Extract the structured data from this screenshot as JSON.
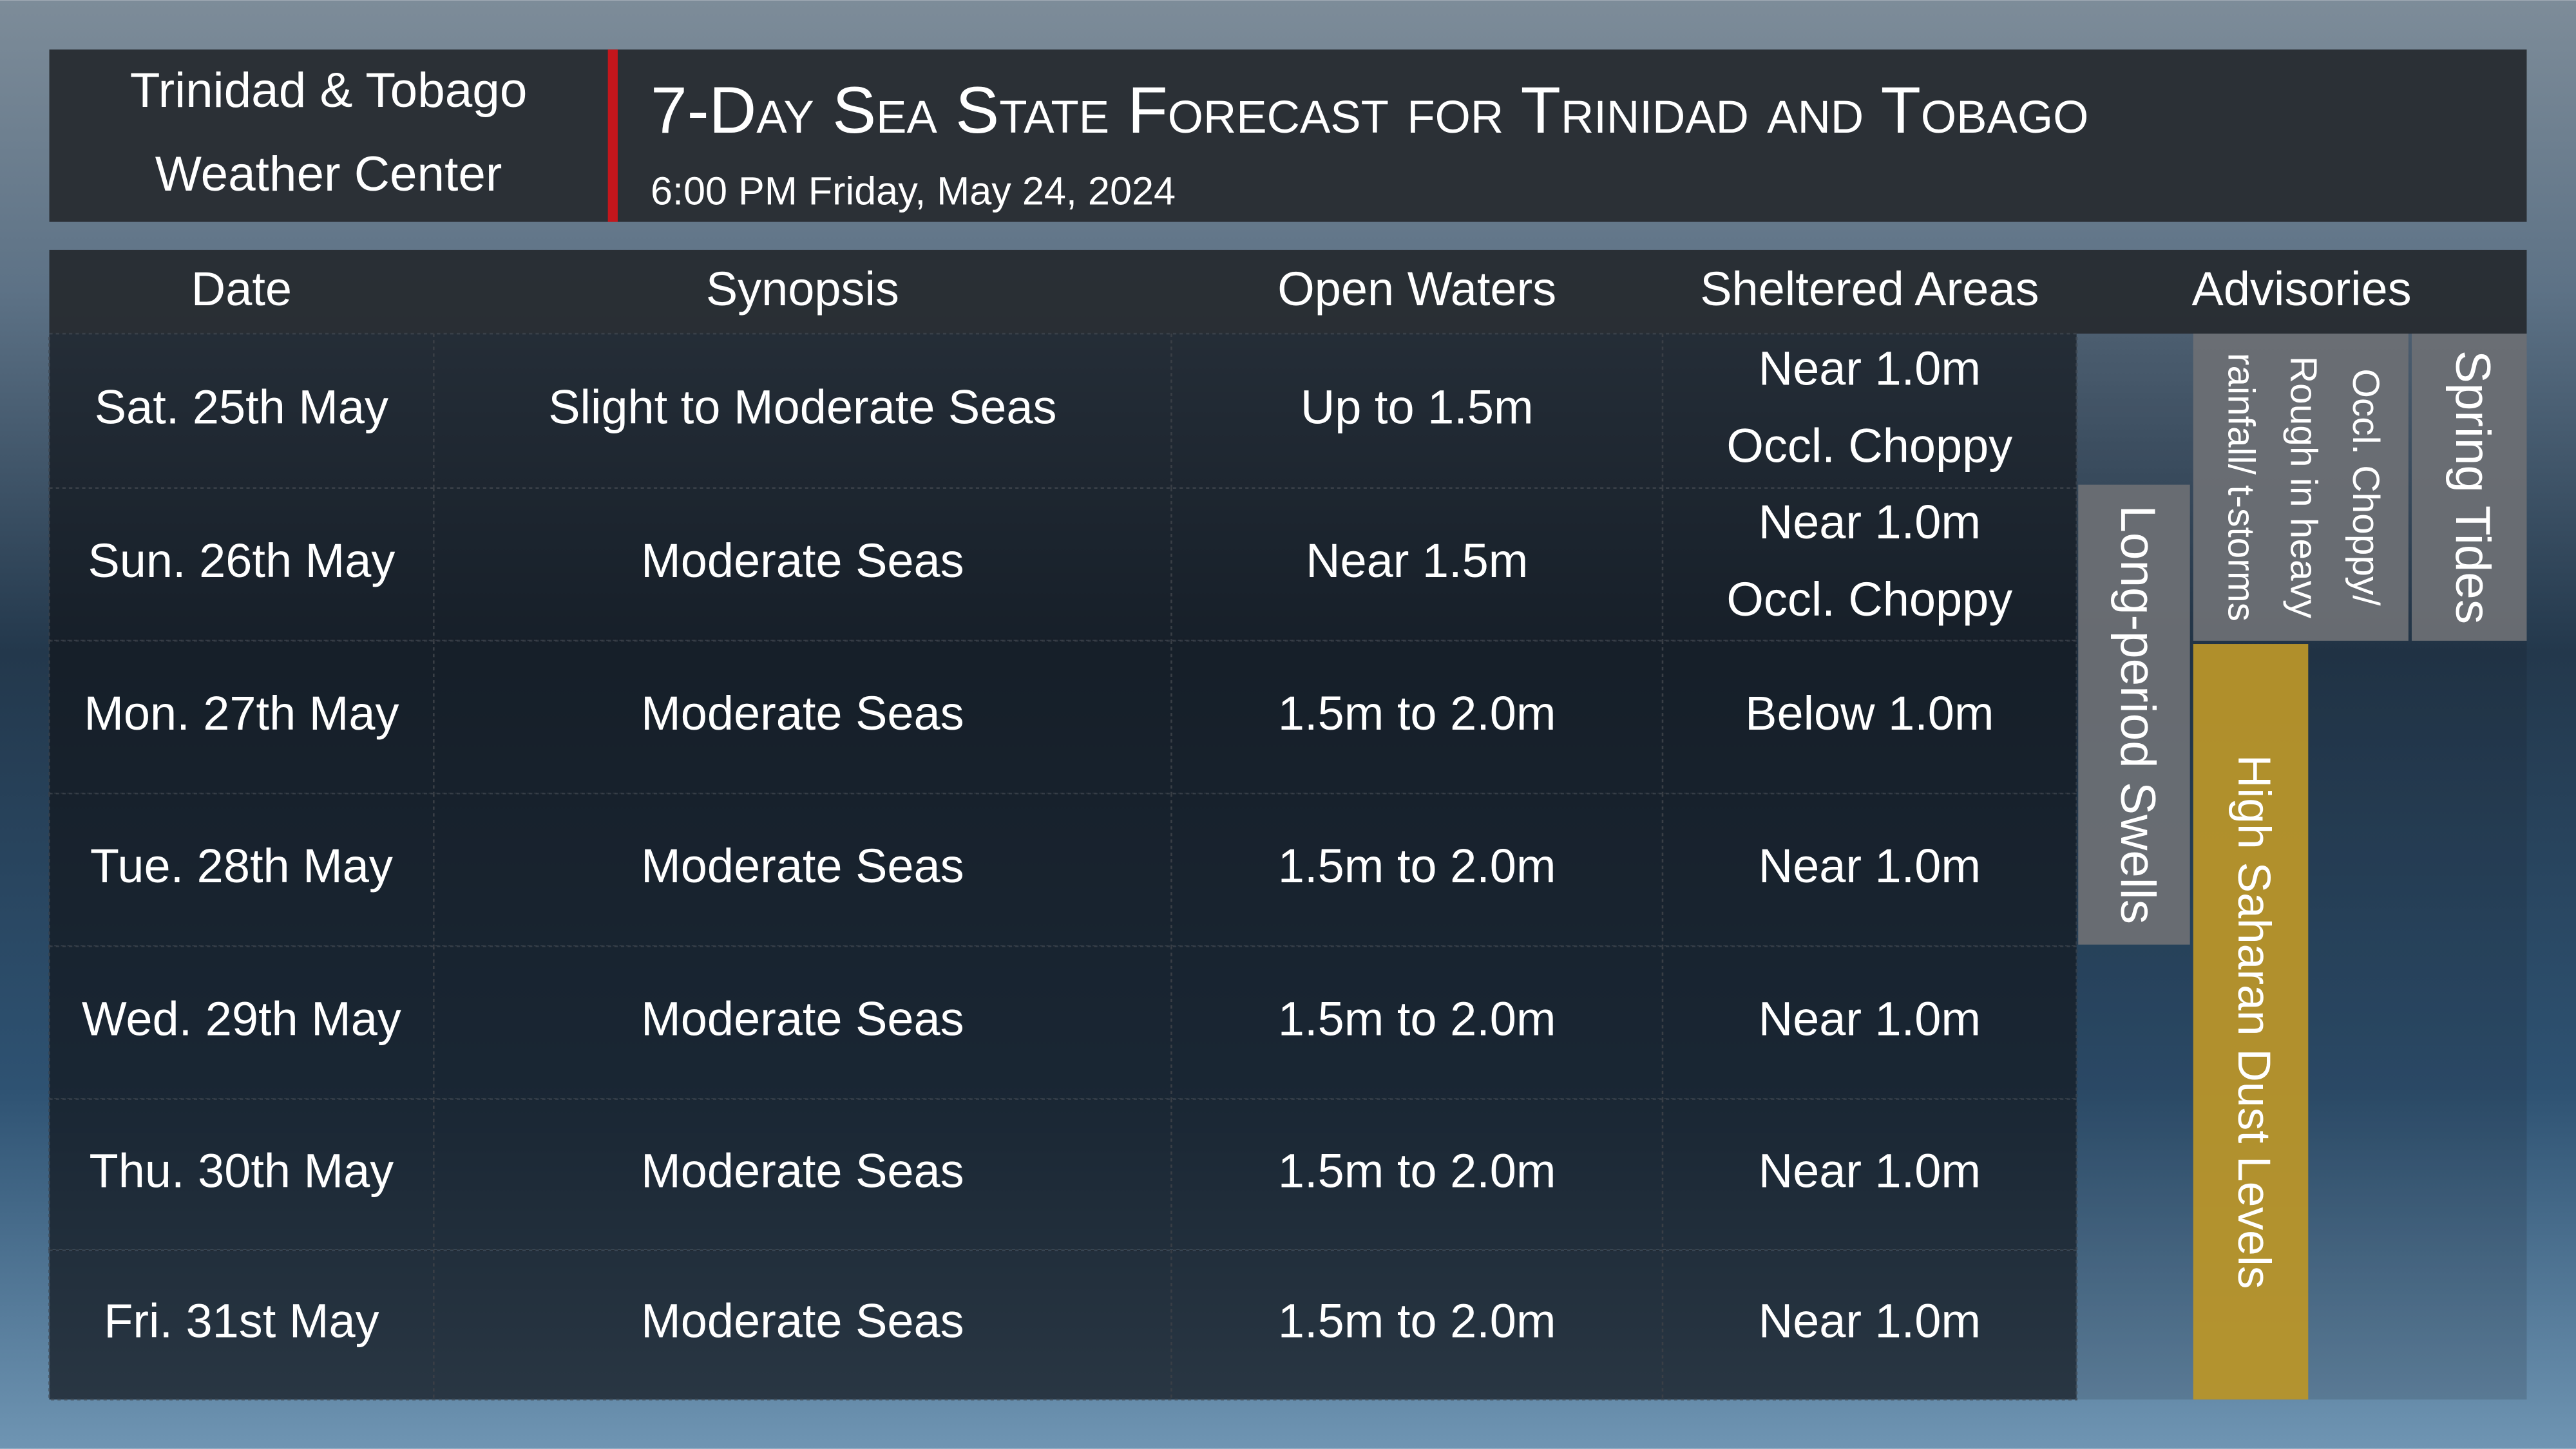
{
  "header": {
    "org_lines": [
      "Trinidad & Tobago",
      "Weather Center"
    ],
    "title": "7-Day Sea State Forecast for Trinidad and Tobago",
    "timestamp": "6:00 PM Friday, May 24, 2024"
  },
  "table": {
    "columns": [
      "Date",
      "Synopsis",
      "Open Waters",
      "Sheltered Areas",
      "Advisories"
    ],
    "rows": [
      {
        "date": "Sat. 25th May",
        "synopsis": "Slight to Moderate Seas",
        "open_waters": "Up to 1.5m",
        "sheltered": [
          "Near 1.0m",
          "Occl. Choppy"
        ]
      },
      {
        "date": "Sun. 26th May",
        "synopsis": "Moderate Seas",
        "open_waters": "Near 1.5m",
        "sheltered": [
          "Near 1.0m",
          "Occl. Choppy"
        ]
      },
      {
        "date": "Mon. 27th May",
        "synopsis": "Moderate Seas",
        "open_waters": "1.5m to 2.0m",
        "sheltered": [
          "Below 1.0m"
        ]
      },
      {
        "date": "Tue. 28th May",
        "synopsis": "Moderate Seas",
        "open_waters": "1.5m to 2.0m",
        "sheltered": [
          "Near 1.0m"
        ]
      },
      {
        "date": "Wed. 29th May",
        "synopsis": "Moderate Seas",
        "open_waters": "1.5m to 2.0m",
        "sheltered": [
          "Near 1.0m"
        ]
      },
      {
        "date": "Thu. 30th May",
        "synopsis": "Moderate Seas",
        "open_waters": "1.5m to 2.0m",
        "sheltered": [
          "Near 1.0m"
        ]
      },
      {
        "date": "Fri. 31st May",
        "synopsis": "Moderate Seas",
        "open_waters": "1.5m to 2.0m",
        "sheltered": [
          "Near 1.0m"
        ]
      }
    ]
  },
  "advisories": [
    {
      "lines": [
        "Long-period Swells"
      ]
    },
    {
      "lines": [
        "Occl. Choppy/",
        "Rough in heavy",
        "rainfall/ t-storms"
      ]
    },
    {
      "lines": [
        "Spring Tides"
      ]
    },
    {
      "lines": [
        "High Saharan Dust Levels"
      ]
    }
  ]
}
